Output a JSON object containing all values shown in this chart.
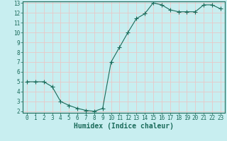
{
  "x": [
    0,
    1,
    2,
    3,
    4,
    5,
    6,
    7,
    8,
    9,
    10,
    11,
    12,
    13,
    14,
    15,
    16,
    17,
    18,
    19,
    20,
    21,
    22,
    23
  ],
  "y": [
    5.0,
    5.0,
    5.0,
    4.5,
    3.0,
    2.6,
    2.3,
    2.1,
    2.0,
    2.3,
    7.0,
    8.5,
    10.0,
    11.4,
    11.9,
    13.0,
    12.8,
    12.3,
    12.1,
    12.1,
    12.1,
    12.8,
    12.8,
    12.4
  ],
  "xlabel": "Humidex (Indice chaleur)",
  "ylim_min": 2,
  "ylim_max": 13,
  "xlim_min": 0,
  "xlim_max": 23,
  "yticks": [
    2,
    3,
    4,
    5,
    6,
    7,
    8,
    9,
    10,
    11,
    12,
    13
  ],
  "xticks": [
    0,
    1,
    2,
    3,
    4,
    5,
    6,
    7,
    8,
    9,
    10,
    11,
    12,
    13,
    14,
    15,
    16,
    17,
    18,
    19,
    20,
    21,
    22,
    23
  ],
  "line_color": "#1a6b5a",
  "marker": "+",
  "marker_size": 4.0,
  "bg_color": "#c8eef0",
  "grid_color": "#e8c8c8",
  "label_color": "#1a6b5a",
  "tick_label_fontsize": 5.5,
  "xlabel_fontsize": 7.0
}
